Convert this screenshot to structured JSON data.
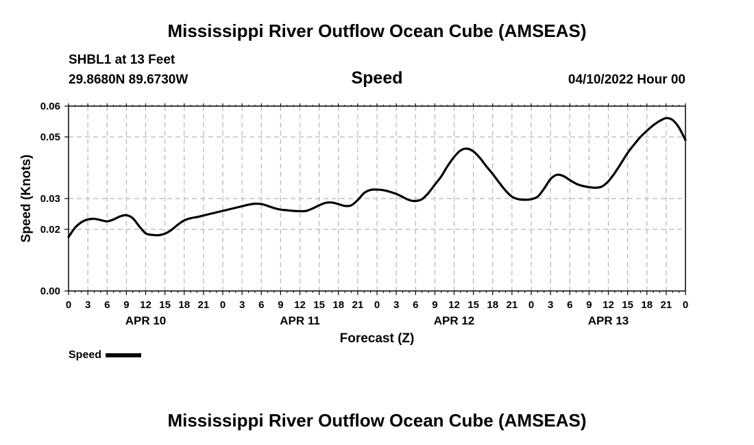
{
  "page": {
    "title": "Mississippi River Outflow Ocean Cube (AMSEAS)",
    "footer_title": "Mississippi River Outflow Ocean Cube (AMSEAS)",
    "station": "SHBL1 at 13 Feet",
    "coordinates": "29.8680N  89.6730W",
    "variable": "Speed",
    "date": "04/10/2022 Hour 00"
  },
  "chart_data": {
    "type": "line",
    "title": "Speed",
    "xlabel": "Forecast (Z)",
    "ylabel": "Speed (Knots)",
    "xlim": [
      0,
      96
    ],
    "ylim": [
      0,
      0.06
    ],
    "grid": true,
    "y_ticks": [
      0,
      0.02,
      0.03,
      0.05,
      0.06
    ],
    "y_tick_labels": [
      "0.00",
      "0.02",
      "0.03",
      "0.05",
      "0.06"
    ],
    "x_ticks": [
      0,
      3,
      6,
      9,
      12,
      15,
      18,
      21,
      24,
      27,
      30,
      33,
      36,
      39,
      42,
      45,
      48,
      51,
      54,
      57,
      60,
      63,
      66,
      69,
      72,
      75,
      78,
      81,
      84,
      87,
      90,
      93,
      96
    ],
    "x_tick_labels": [
      "0",
      "3",
      "6",
      "9",
      "12",
      "15",
      "18",
      "21",
      "0",
      "3",
      "6",
      "9",
      "12",
      "15",
      "18",
      "21",
      "0",
      "3",
      "6",
      "9",
      "12",
      "15",
      "18",
      "21",
      "0",
      "3",
      "6",
      "9",
      "12",
      "15",
      "18",
      "21",
      "0"
    ],
    "day_labels": [
      {
        "label": "APR 10",
        "x": 12
      },
      {
        "label": "APR 11",
        "x": 36
      },
      {
        "label": "APR 12",
        "x": 60
      },
      {
        "label": "APR 13",
        "x": 84
      }
    ],
    "legend": {
      "label": "Speed",
      "position": "bottom-left"
    },
    "series": [
      {
        "name": "Speed",
        "color": "#000000",
        "x": [
          0,
          1,
          2,
          3,
          4,
          5,
          6,
          7,
          8,
          9,
          10,
          11,
          12,
          13,
          14,
          15,
          16,
          17,
          18,
          19,
          20,
          21,
          22,
          23,
          24,
          25,
          26,
          27,
          28,
          29,
          30,
          31,
          32,
          33,
          34,
          35,
          36,
          37,
          38,
          39,
          40,
          41,
          42,
          43,
          44,
          45,
          46,
          47,
          48,
          49,
          50,
          51,
          52,
          53,
          54,
          55,
          56,
          57,
          58,
          59,
          60,
          61,
          62,
          63,
          64,
          65,
          66,
          67,
          68,
          69,
          70,
          71,
          72,
          73,
          74,
          75,
          76,
          77,
          78,
          79,
          80,
          81,
          82,
          83,
          84,
          85,
          86,
          87,
          88,
          89,
          90,
          91,
          92,
          93,
          94,
          95,
          96
        ],
        "values": [
          0.0175,
          0.0205,
          0.0223,
          0.0232,
          0.0234,
          0.023,
          0.0226,
          0.0232,
          0.0242,
          0.0246,
          0.0236,
          0.021,
          0.0187,
          0.0182,
          0.0181,
          0.0186,
          0.0198,
          0.0215,
          0.0229,
          0.0236,
          0.024,
          0.0245,
          0.025,
          0.0255,
          0.026,
          0.0265,
          0.027,
          0.0275,
          0.028,
          0.0283,
          0.0282,
          0.0276,
          0.0269,
          0.0264,
          0.0262,
          0.026,
          0.0259,
          0.026,
          0.0268,
          0.0278,
          0.0286,
          0.0287,
          0.0282,
          0.0276,
          0.0278,
          0.0295,
          0.0318,
          0.0328,
          0.0329,
          0.0327,
          0.0322,
          0.0315,
          0.0305,
          0.0295,
          0.0292,
          0.0298,
          0.0318,
          0.0345,
          0.0372,
          0.0406,
          0.0435,
          0.0456,
          0.0462,
          0.0453,
          0.0432,
          0.0405,
          0.038,
          0.0352,
          0.0326,
          0.0306,
          0.0298,
          0.0296,
          0.0298,
          0.0306,
          0.0332,
          0.0363,
          0.0377,
          0.0373,
          0.036,
          0.0348,
          0.0341,
          0.0337,
          0.0335,
          0.0339,
          0.0356,
          0.0383,
          0.0415,
          0.0448,
          0.0475,
          0.05,
          0.052,
          0.0538,
          0.0552,
          0.0561,
          0.0555,
          0.053,
          0.049
        ]
      }
    ]
  }
}
